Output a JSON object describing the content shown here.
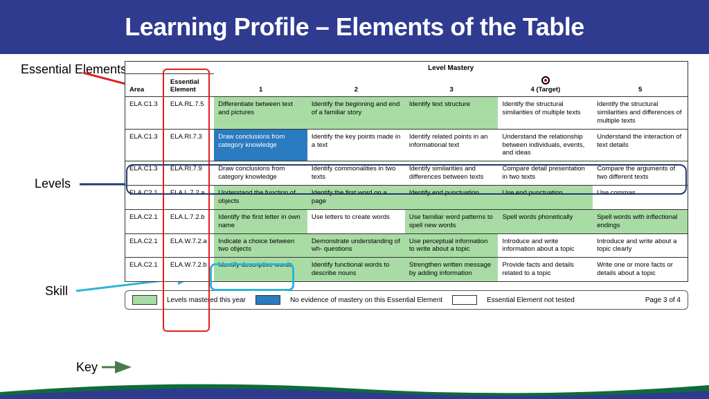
{
  "header": {
    "title": "Learning Profile – Elements of the Table"
  },
  "callouts": {
    "essential": "Essential Elements",
    "levels": "Levels",
    "skill": "Skill",
    "key": "Key"
  },
  "table": {
    "mastery_title": "Level Mastery",
    "columns": {
      "area": "Area",
      "element": "Essential Element",
      "l1": "1",
      "l2": "2",
      "l3": "3",
      "l4": "4 (Target)",
      "l5": "5"
    },
    "rows": [
      {
        "area": "ELA.C1.3",
        "elem": "ELA.RL.7.5",
        "c": [
          {
            "t": "Differentiate between text and pictures",
            "s": "mastered"
          },
          {
            "t": "Identify the beginning and end of a familiar story",
            "s": "mastered"
          },
          {
            "t": "Identify text structure",
            "s": "mastered"
          },
          {
            "t": "Identify the structural similarities of multiple texts",
            "s": ""
          },
          {
            "t": "Identify the structural similarities and differences of multiple texts",
            "s": ""
          }
        ]
      },
      {
        "area": "ELA.C1.3",
        "elem": "ELA.RI.7.3",
        "c": [
          {
            "t": "Draw conclusions from category knowledge",
            "s": "noevidence"
          },
          {
            "t": "Identify the key points made in a text",
            "s": ""
          },
          {
            "t": "Identify related points in an informational text",
            "s": ""
          },
          {
            "t": "Understand the relationship between individuals, events, and ideas",
            "s": ""
          },
          {
            "t": "Understand the interaction of text details",
            "s": ""
          }
        ]
      },
      {
        "area": "ELA.C1.3",
        "elem": "ELA.RI.7.9",
        "c": [
          {
            "t": "Draw conclusions from category knowledge",
            "s": ""
          },
          {
            "t": "Identify commonalities in two texts",
            "s": ""
          },
          {
            "t": "Identify similarities and differences between texts",
            "s": ""
          },
          {
            "t": "Compare detail presentation in two texts",
            "s": ""
          },
          {
            "t": "Compare the arguments of two different texts",
            "s": ""
          }
        ]
      },
      {
        "area": "ELA.C2.1",
        "elem": "ELA.L.7.2.a",
        "c": [
          {
            "t": "Understand the function of objects",
            "s": "mastered"
          },
          {
            "t": "Identify the first word on a page",
            "s": "mastered"
          },
          {
            "t": "Identify end punctuation",
            "s": "mastered"
          },
          {
            "t": "Use end punctuation",
            "s": "mastered"
          },
          {
            "t": "Use commas",
            "s": ""
          }
        ]
      },
      {
        "area": "ELA.C2.1",
        "elem": "ELA.L.7.2.b",
        "c": [
          {
            "t": "Identify the first letter in own name",
            "s": "mastered"
          },
          {
            "t": "Use letters to create words",
            "s": ""
          },
          {
            "t": "Use familiar word patterns to spell new words",
            "s": "mastered"
          },
          {
            "t": "Spell words phonetically",
            "s": "mastered"
          },
          {
            "t": "Spell words with inflectional endings",
            "s": "mastered"
          }
        ]
      },
      {
        "area": "ELA.C2.1",
        "elem": "ELA.W.7.2.a",
        "c": [
          {
            "t": "Indicate a choice between two objects",
            "s": "mastered"
          },
          {
            "t": "Demonstrate understanding of wh- questions",
            "s": "mastered"
          },
          {
            "t": "Use perceptual information to write about a topic",
            "s": "mastered"
          },
          {
            "t": "Introduce and write information about a topic",
            "s": ""
          },
          {
            "t": "Introduce and write about a topic clearly",
            "s": ""
          }
        ]
      },
      {
        "area": "ELA.C2.1",
        "elem": "ELA.W.7.2.b",
        "c": [
          {
            "t": "Identify descriptive words",
            "s": "mastered"
          },
          {
            "t": "Identify functional words to describe nouns",
            "s": "mastered"
          },
          {
            "t": "Strengthen written message by adding information",
            "s": "mastered"
          },
          {
            "t": "Provide facts and details related to a topic",
            "s": ""
          },
          {
            "t": "Write one or more facts or details about a topic",
            "s": ""
          }
        ]
      }
    ]
  },
  "key": {
    "mastered": "Levels mastered this year",
    "noevidence": "No evidence of mastery on this Essential Element",
    "nottested": "Essential Element not tested",
    "page": "Page 3 of 4"
  },
  "colors": {
    "header_bg": "#2e3b8f",
    "mastered": "#a9dca5",
    "noevidence": "#2a7bbf",
    "red": "#e02020",
    "darkblue": "#23386b",
    "cyan": "#2ab6d6"
  }
}
